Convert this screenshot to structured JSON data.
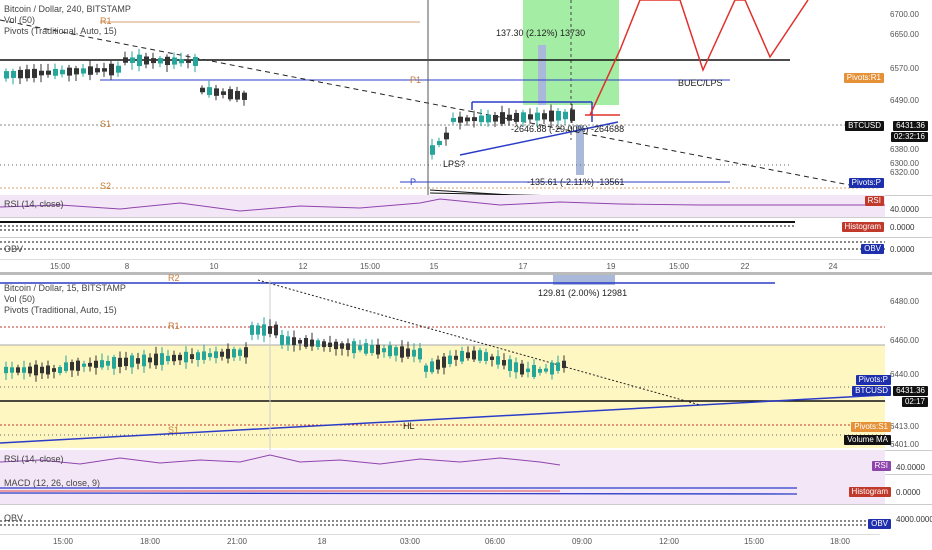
{
  "top_chart": {
    "legend": [
      "Bitcoin / Dollar, 240, BITSTAMP",
      "Vol (50)",
      "Pivots (Traditional, Auto, 15)"
    ],
    "pivot_labels": [
      "R1",
      "P1",
      "S1",
      "S2",
      "P"
    ],
    "price_axis": [
      "6700.00",
      "6650.00",
      "6570.00",
      "6490.00",
      "6380.00",
      "6300.00",
      "6320.00"
    ],
    "price_tags": {
      "pivots_r1": "Pivots:R1",
      "btcusd": "BTCUSD",
      "btcusd_value": "6431.36",
      "countdown": "02:32:16",
      "pivots_p": "Pivots:P"
    },
    "annotations": {
      "measure_top": "137.30 (2.12%) 13730",
      "buec": "BUEC/LPS",
      "lps": "LPS?",
      "measure_mid": "-2646.88 (-29.00%) -264688",
      "measure_bottom": "-135.61 (-2.11%) -13561"
    },
    "rsi_label": "RSI (14, close)",
    "rsi_tag": "RSI",
    "rsi_value": "40.0000",
    "hist_tag": "Histogram",
    "hist_value": "0.0000",
    "obv_label": "OBV",
    "obv_tag": "OBV",
    "obv_value": "0.0000",
    "time_axis": [
      "15:00",
      "8",
      "10",
      "12",
      "15:00",
      "15",
      "17",
      "19",
      "15:00",
      "22",
      "24"
    ]
  },
  "bottom_chart": {
    "legend": [
      "Bitcoin / Dollar, 15, BITSTAMP",
      "Vol (50)",
      "Pivots (Traditional, Auto, 15)"
    ],
    "pivot_labels": [
      "R2",
      "R1",
      "S1",
      "HL"
    ],
    "price_axis": [
      "6480.00",
      "6460.00",
      "6440.00",
      "6413.00",
      "6401.00"
    ],
    "price_tags": {
      "pivots_p": "Pivots:P",
      "btcusd": "BTCUSD",
      "btcusd_value": "6431.36",
      "countdown": "02:17",
      "pivots_s1": "Pivots:S1",
      "volume_ma": "Volume MA"
    },
    "annotations": {
      "measure": "129.81 (2.00%) 12981"
    },
    "rsi_label": "RSI (14, close)",
    "rsi_tag": "RSI",
    "rsi_value": "40.0000",
    "macd_label": "MACD (12, 26, close, 9)",
    "hist_tag": "Histogram",
    "hist_value": "0.0000",
    "obv_label": "OBV",
    "obv_tag": "OBV",
    "obv_value": "4000.0000",
    "time_axis": [
      "15:00",
      "18:00",
      "21:00",
      "18",
      "03:00",
      "06:00",
      "09:00",
      "12:00",
      "15:00",
      "18:00"
    ]
  },
  "colors": {
    "up": "#26a69a",
    "down": "#333333",
    "green_zone": "#66dd66",
    "red_path": "#e0302a",
    "pivot_blue": "#2b3cc9",
    "yellow_bg": "#fff7c2"
  }
}
